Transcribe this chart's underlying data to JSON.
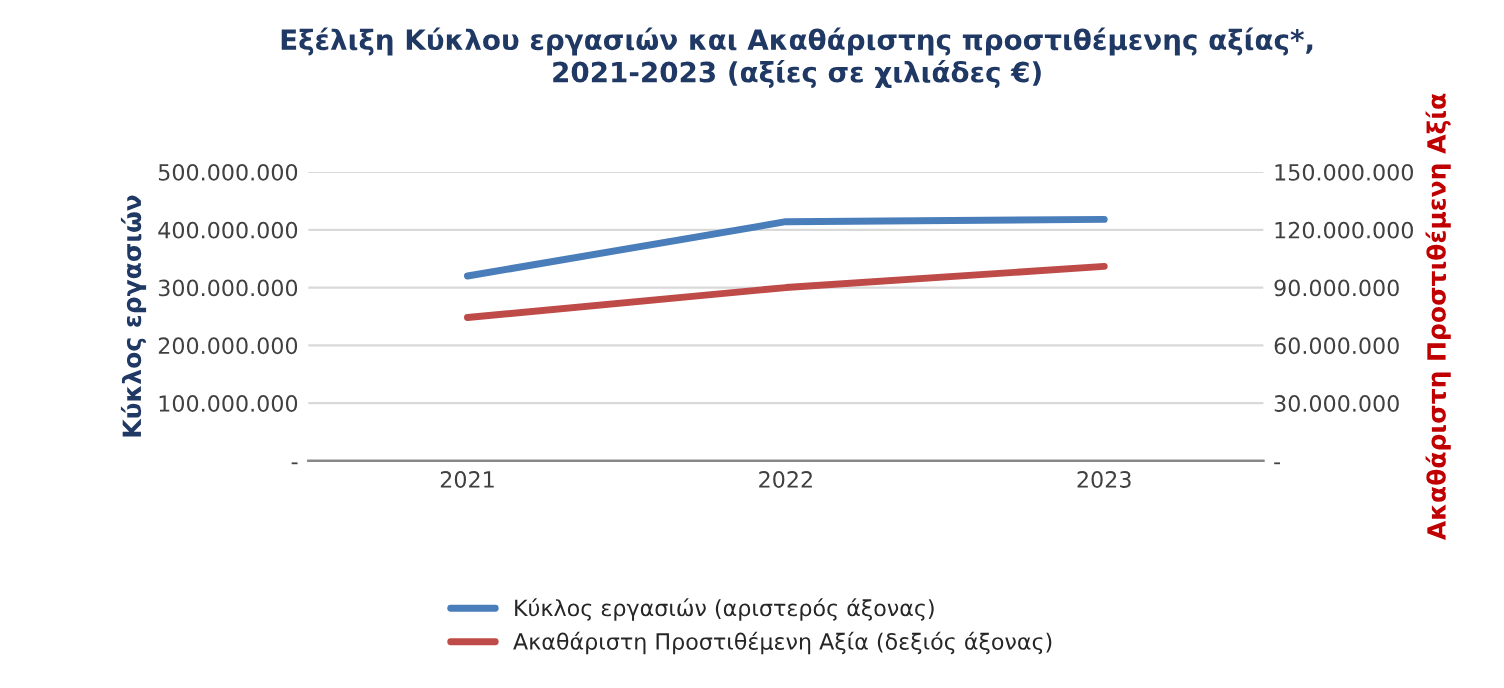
{
  "chart_data": {
    "type": "line",
    "title": "Εξέλιξη Κύκλου εργασιών και Ακαθάριστης προστιθέμενης αξίας*,\n2021-2023 (αξίες σε χιλιάδες €)",
    "ylabel": "Κύκλος εργασιών",
    "y2label": "Ακαθάριστη Προστιθέμενη Αξία",
    "categories": [
      "2021",
      "2022",
      "2023"
    ],
    "series": [
      {
        "name": "Κύκλος εργασιών (αριστερός άξονας)",
        "color": "#4a7ebb",
        "values": [
          320000000,
          414000000,
          418000000
        ]
      },
      {
        "name": "Ακαθάριστη Προστιθέμενη Αξία (δεξιός άξονας)",
        "color": "#be4b48",
        "values": [
          74500000,
          90000000,
          101000000
        ],
        "axis": "y2"
      }
    ],
    "ylim": [
      0,
      500000000
    ],
    "yticks": [
      {
        "value": 0,
        "label": "-"
      },
      {
        "value": 100000000,
        "label": "100.000.000"
      },
      {
        "value": 200000000,
        "label": "200.000.000"
      },
      {
        "value": 300000000,
        "label": "300.000.000"
      },
      {
        "value": 400000000,
        "label": "400.000.000"
      },
      {
        "value": 500000000,
        "label": "500.000.000"
      }
    ],
    "y2lim": [
      0,
      150000000
    ],
    "y2ticks": [
      {
        "value": 0,
        "label": "-"
      },
      {
        "value": 30000000,
        "label": "30.000.000"
      },
      {
        "value": 60000000,
        "label": "60.000.000"
      },
      {
        "value": 90000000,
        "label": "90.000.000"
      },
      {
        "value": 120000000,
        "label": "120.000.000"
      },
      {
        "value": 150000000,
        "label": "150.000.000"
      }
    ],
    "grid": "y",
    "legend": "bottom",
    "marker": "none",
    "line_style": "solid"
  }
}
